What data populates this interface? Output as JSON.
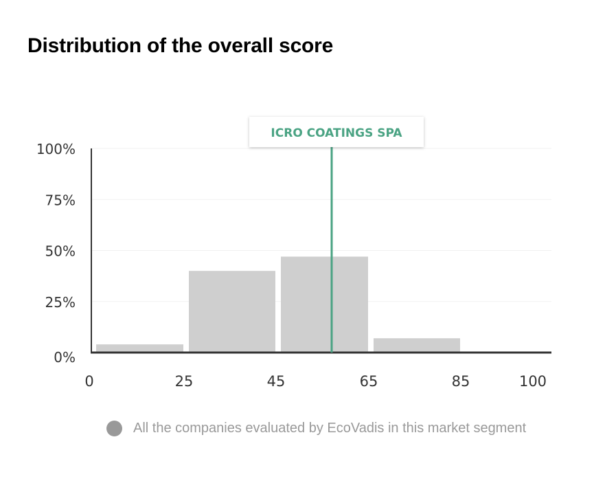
{
  "title": "Distribution of the overall score",
  "chart_data": {
    "type": "bar",
    "title": "Distribution of the overall score",
    "bins": [
      [
        0,
        25
      ],
      [
        25,
        45
      ],
      [
        45,
        65
      ],
      [
        65,
        85
      ],
      [
        85,
        100
      ]
    ],
    "values": [
      4,
      40,
      47,
      7,
      0
    ],
    "xticks": [
      0,
      25,
      45,
      65,
      85,
      100
    ],
    "xlim": [
      0,
      100
    ],
    "ylim": [
      0,
      100
    ],
    "yticks": [
      0,
      25,
      50,
      75,
      100
    ],
    "ytick_labels": [
      "0%",
      "25%",
      "50%",
      "75%",
      "100%"
    ],
    "marker": {
      "label": "ICRO COATINGS SPA",
      "x": 57
    },
    "legend": {
      "label": "All the companies evaluated by EcoVadis in this market segment",
      "position": "bottom"
    },
    "grid": true,
    "colors": {
      "bar": "#cfcfcf",
      "marker": "#4aa383",
      "axis": "#333333",
      "grid": "#f1f1f1",
      "legend_dot": "#999999"
    }
  }
}
